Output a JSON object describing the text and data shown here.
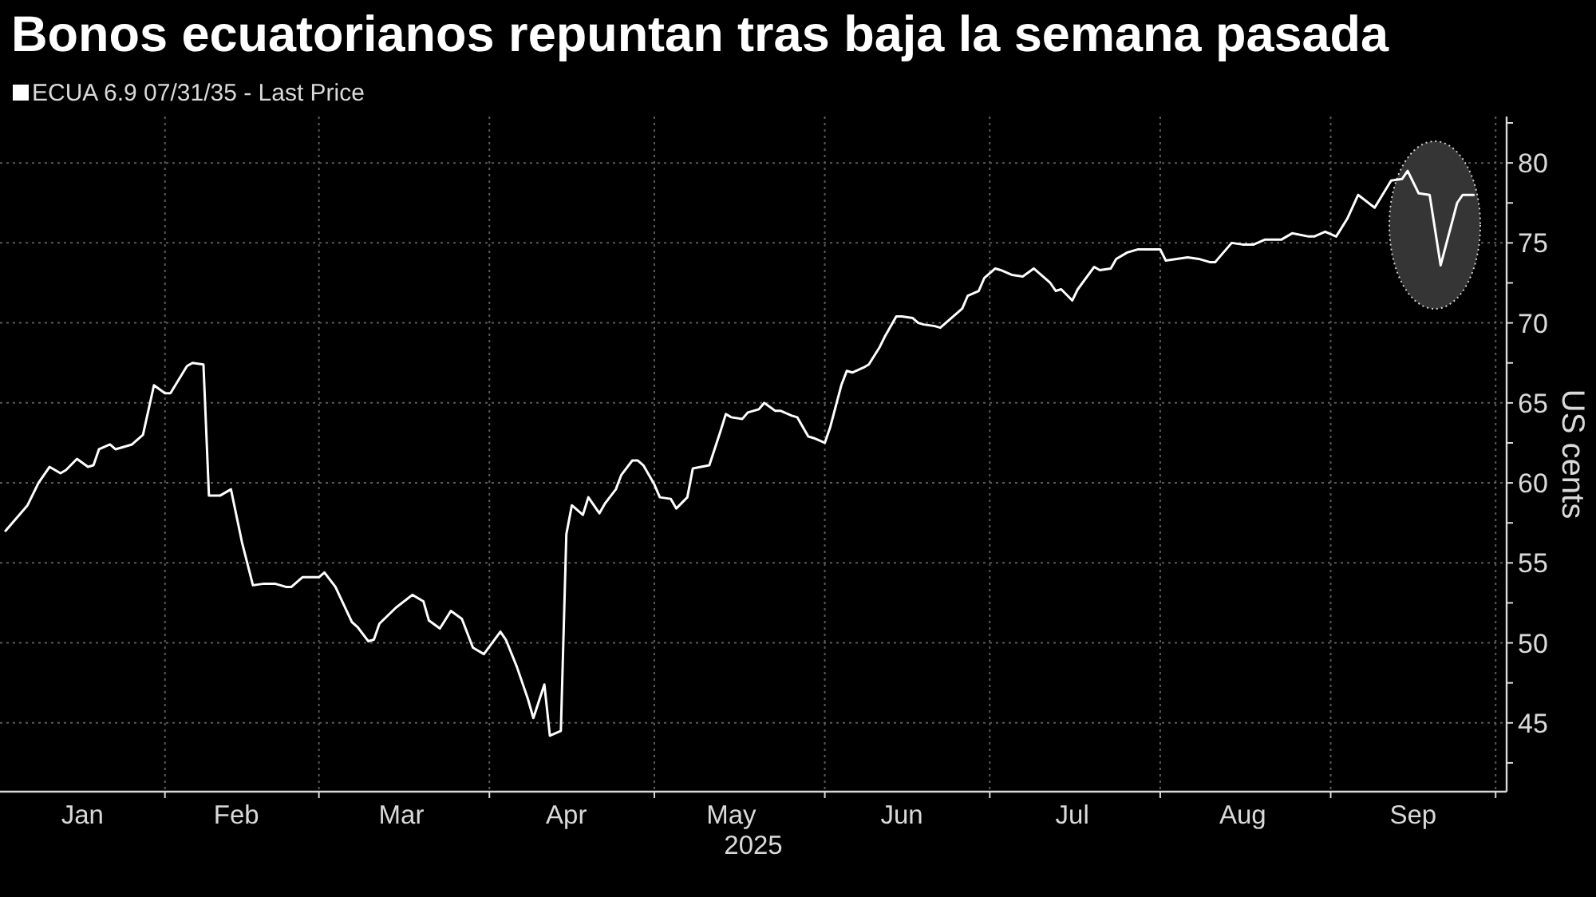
{
  "chart_data": {
    "type": "line",
    "title": "Bonos ecuatorianos repuntan tras baja la semana pasada",
    "xlabel": "2025",
    "ylabel": "US cents",
    "x": [
      "2025-01-03",
      "2025-01-05",
      "2025-01-07",
      "2025-01-09",
      "2025-01-11",
      "2025-01-13",
      "2025-01-14",
      "2025-01-16",
      "2025-01-18",
      "2025-01-19",
      "2025-01-20",
      "2025-01-22",
      "2025-01-23",
      "2025-01-26",
      "2025-01-28",
      "2025-01-30",
      "2025-02-01",
      "2025-02-02",
      "2025-02-05",
      "2025-02-06",
      "2025-02-08",
      "2025-02-09",
      "2025-02-11",
      "2025-02-13",
      "2025-02-15",
      "2025-02-17",
      "2025-02-19",
      "2025-02-21",
      "2025-02-23",
      "2025-02-24",
      "2025-02-26",
      "2025-03-01",
      "2025-03-02",
      "2025-03-04",
      "2025-03-07",
      "2025-03-08",
      "2025-03-10",
      "2025-03-11",
      "2025-03-12",
      "2025-03-15",
      "2025-03-18",
      "2025-03-20",
      "2025-03-21",
      "2025-03-23",
      "2025-03-25",
      "2025-03-27",
      "2025-03-29",
      "2025-03-31",
      "2025-04-03",
      "2025-04-04",
      "2025-04-06",
      "2025-04-08",
      "2025-04-09",
      "2025-04-11",
      "2025-04-12",
      "2025-04-14",
      "2025-04-15",
      "2025-04-16",
      "2025-04-18",
      "2025-04-19",
      "2025-04-21",
      "2025-04-22",
      "2025-04-24",
      "2025-04-25",
      "2025-04-27",
      "2025-04-28",
      "2025-04-29",
      "2025-05-01",
      "2025-05-02",
      "2025-05-04",
      "2025-05-05",
      "2025-05-07",
      "2025-05-08",
      "2025-05-11",
      "2025-05-13",
      "2025-05-14",
      "2025-05-15",
      "2025-05-17",
      "2025-05-18",
      "2025-05-20",
      "2025-05-21",
      "2025-05-23",
      "2025-05-24",
      "2025-05-26",
      "2025-05-27",
      "2025-05-29",
      "2025-05-30",
      "2025-06-01",
      "2025-06-02",
      "2025-06-04",
      "2025-06-05",
      "2025-06-06",
      "2025-06-08",
      "2025-06-09",
      "2025-06-11",
      "2025-06-12",
      "2025-06-14",
      "2025-06-15",
      "2025-06-17",
      "2025-06-18",
      "2025-06-19",
      "2025-06-21",
      "2025-06-22",
      "2025-06-24",
      "2025-06-26",
      "2025-06-27",
      "2025-06-29",
      "2025-06-30",
      "2025-07-02",
      "2025-07-03",
      "2025-07-05",
      "2025-07-07",
      "2025-07-09",
      "2025-07-10",
      "2025-07-12",
      "2025-07-13",
      "2025-07-14",
      "2025-07-16",
      "2025-07-17",
      "2025-07-20",
      "2025-07-21",
      "2025-07-23",
      "2025-07-24",
      "2025-07-26",
      "2025-07-28",
      "2025-07-30",
      "2025-08-01",
      "2025-08-02",
      "2025-08-04",
      "2025-08-06",
      "2025-08-08",
      "2025-08-10",
      "2025-08-11",
      "2025-08-14",
      "2025-08-16",
      "2025-08-18",
      "2025-08-20",
      "2025-08-23",
      "2025-08-25",
      "2025-08-28",
      "2025-08-29",
      "2025-08-31",
      "2025-09-02",
      "2025-09-04",
      "2025-09-06",
      "2025-09-09",
      "2025-09-12",
      "2025-09-14",
      "2025-09-15",
      "2025-09-17",
      "2025-09-19",
      "2025-09-21",
      "2025-09-24",
      "2025-09-25",
      "2025-09-27"
    ],
    "series": [
      {
        "name": "ECUA 6.9 07/31/35 - Last Price",
        "color": "#ffffff",
        "values": [
          57.0,
          57.8,
          58.6,
          60.0,
          61.0,
          60.6,
          60.8,
          61.5,
          61.0,
          61.1,
          62.1,
          62.4,
          62.1,
          62.4,
          63.0,
          66.1,
          65.6,
          65.6,
          67.3,
          67.5,
          67.4,
          59.2,
          59.2,
          59.6,
          56.3,
          53.6,
          53.7,
          53.7,
          53.5,
          53.5,
          54.1,
          54.1,
          54.4,
          53.5,
          51.3,
          51.0,
          50.1,
          50.2,
          51.2,
          52.2,
          53.0,
          52.6,
          51.4,
          50.9,
          52.0,
          51.5,
          49.7,
          49.3,
          50.7,
          50.2,
          48.5,
          46.5,
          45.3,
          47.4,
          44.2,
          44.5,
          56.8,
          58.6,
          58.0,
          59.1,
          58.1,
          58.7,
          59.6,
          60.5,
          61.4,
          61.4,
          61.1,
          59.9,
          59.1,
          59.0,
          58.4,
          59.1,
          60.9,
          61.1,
          63.2,
          64.3,
          64.1,
          64.0,
          64.4,
          64.6,
          65.0,
          64.5,
          64.5,
          64.2,
          64.1,
          62.9,
          62.8,
          62.5,
          63.5,
          66.1,
          67.0,
          66.9,
          67.2,
          67.4,
          68.5,
          69.2,
          70.4,
          70.4,
          70.3,
          70.0,
          69.9,
          69.8,
          69.7,
          70.3,
          70.9,
          71.7,
          72.0,
          72.8,
          73.4,
          73.3,
          73.0,
          72.9,
          73.4,
          73.1,
          72.5,
          72.0,
          72.1,
          71.4,
          72.1,
          73.5,
          73.3,
          73.4,
          74.0,
          74.4,
          74.6,
          74.6,
          74.6,
          73.9,
          74.0,
          74.1,
          74.0,
          73.8,
          73.8,
          75.0,
          74.9,
          74.9,
          75.2,
          75.2,
          75.6,
          75.4,
          75.4,
          75.7,
          75.4,
          76.5,
          78.0,
          77.2,
          78.9,
          79.0,
          79.5,
          78.1,
          78.0,
          73.6,
          77.5,
          78.0,
          78.0
        ]
      }
    ],
    "xlim": [
      "2025-01-02",
      "2025-10-03"
    ],
    "xticks": [
      {
        "value": "2025-01-17",
        "label": "Jan"
      },
      {
        "value": "2025-02-01",
        "label": null
      },
      {
        "value": "2025-02-14",
        "label": "Feb"
      },
      {
        "value": "2025-03-01",
        "label": null
      },
      {
        "value": "2025-03-16",
        "label": "Mar"
      },
      {
        "value": "2025-04-01",
        "label": null
      },
      {
        "value": "2025-04-15",
        "label": "Apr"
      },
      {
        "value": "2025-05-01",
        "label": null
      },
      {
        "value": "2025-05-15",
        "label": "May"
      },
      {
        "value": "2025-06-01",
        "label": null
      },
      {
        "value": "2025-06-15",
        "label": "Jun"
      },
      {
        "value": "2025-07-01",
        "label": null
      },
      {
        "value": "2025-07-16",
        "label": "Jul"
      },
      {
        "value": "2025-08-01",
        "label": null
      },
      {
        "value": "2025-08-16",
        "label": "Aug"
      },
      {
        "value": "2025-09-01",
        "label": null
      },
      {
        "value": "2025-09-16",
        "label": "Sep"
      },
      {
        "value": "2025-10-01",
        "label": null
      }
    ],
    "ylim": [
      40.7,
      82.9
    ],
    "yticks": [
      {
        "value": 42.5,
        "label": null
      },
      45,
      {
        "value": 47.5,
        "label": null
      },
      50,
      {
        "value": 52.5,
        "label": null
      },
      55,
      {
        "value": 57.5,
        "label": null
      },
      60,
      {
        "value": 62.5,
        "label": null
      },
      65,
      {
        "value": 67.5,
        "label": null
      },
      70,
      {
        "value": 72.5,
        "label": null
      },
      75,
      {
        "value": 77.5,
        "label": null
      },
      80,
      {
        "value": 82.5,
        "label": null
      }
    ],
    "grid": true,
    "legend": "top left"
  }
}
